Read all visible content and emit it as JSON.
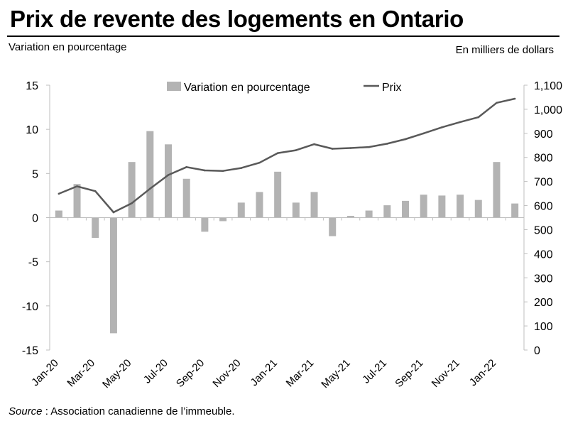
{
  "title": "Prix de revente des logements en Ontario",
  "left_axis_label": "Variation en pourcentage",
  "right_axis_label": "En milliers de dollars",
  "source_italic": "Source",
  "source_rest": " : Association canadienne de l’immeuble.",
  "colors": {
    "bar": "#b3b3b3",
    "line": "#595959",
    "axis": "#bfbfbf"
  },
  "chart_data": {
    "type": "bar+line",
    "categories": [
      "Jan-20",
      "Feb-20",
      "Mar-20",
      "Apr-20",
      "May-20",
      "Jun-20",
      "Jul-20",
      "Aug-20",
      "Sep-20",
      "Oct-20",
      "Nov-20",
      "Dec-20",
      "Jan-21",
      "Feb-21",
      "Mar-21",
      "Apr-21",
      "May-21",
      "Jun-21",
      "Jul-21",
      "Aug-21",
      "Sep-21",
      "Oct-21",
      "Nov-21",
      "Dec-21",
      "Jan-22",
      "Feb-22"
    ],
    "tick_labels": [
      "Jan-20",
      "Mar-20",
      "May-20",
      "Jul-20",
      "Sep-20",
      "Nov-20",
      "Jan-21",
      "Mar-21",
      "May-21",
      "Jul-21",
      "Sep-21",
      "Nov-21",
      "Jan-22"
    ],
    "series": [
      {
        "name": "Variation en pourcentage",
        "type": "bar",
        "axis": "left",
        "values": [
          0.8,
          3.8,
          -2.3,
          -13.1,
          6.3,
          9.8,
          8.3,
          4.4,
          -1.6,
          -0.4,
          1.7,
          2.9,
          5.2,
          1.7,
          2.9,
          -2.1,
          0.2,
          0.8,
          1.4,
          1.9,
          2.6,
          2.5,
          2.6,
          2.0,
          6.3,
          1.6
        ]
      },
      {
        "name": "Prix",
        "type": "line",
        "axis": "right",
        "values": [
          649,
          680,
          660,
          572,
          610,
          670,
          727,
          760,
          746,
          744,
          756,
          778,
          818,
          830,
          855,
          836,
          839,
          843,
          857,
          876,
          900,
          925,
          947,
          967,
          1027,
          1044
        ]
      }
    ],
    "y_left": {
      "min": -15,
      "max": 15,
      "ticks": [
        "-15",
        "-10",
        "-5",
        "0",
        "5",
        "10",
        "15"
      ]
    },
    "y_right": {
      "min": 0,
      "max": 1100,
      "ticks": [
        "0",
        "100",
        "200",
        "300",
        "400",
        "500",
        "600",
        "700",
        "800",
        "900",
        "1,000",
        "1,100"
      ]
    },
    "legend": {
      "placement": "top",
      "items": [
        "Variation en pourcentage",
        "Prix"
      ]
    },
    "grid": false
  }
}
